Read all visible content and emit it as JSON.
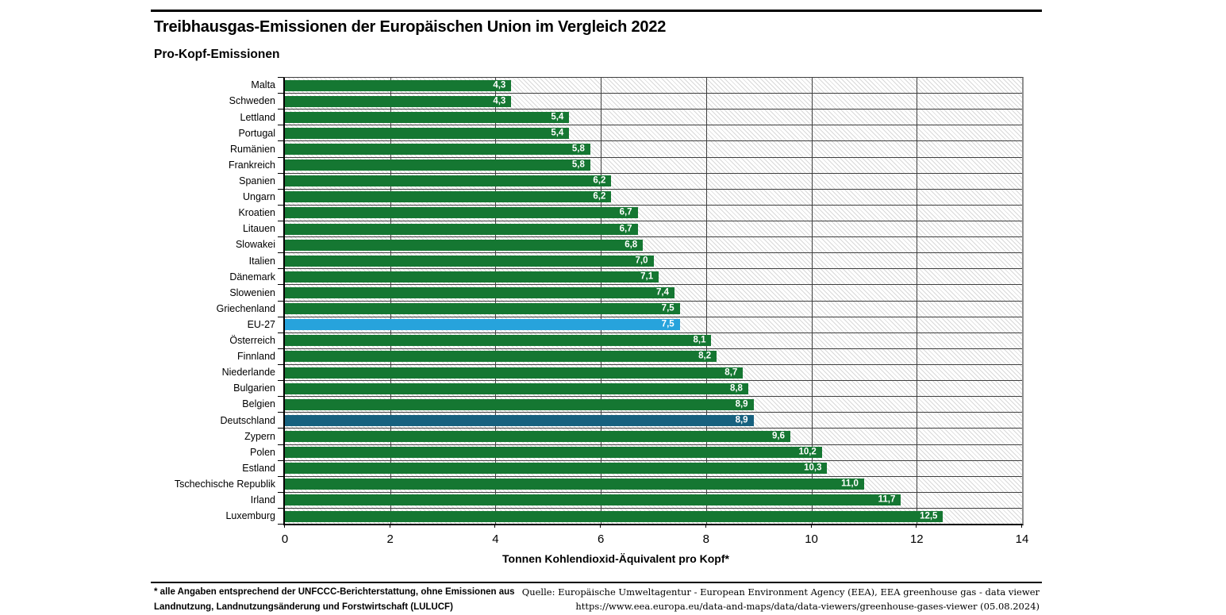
{
  "title": "Treibhausgas-Emissionen der Europäischen Union im Vergleich 2022",
  "subtitle": "Pro-Kopf-Emissionen",
  "chart_data": {
    "type": "bar",
    "orientation": "horizontal",
    "title": "Treibhausgas-Emissionen der Europäischen Union im Vergleich 2022",
    "subtitle": "Pro-Kopf-Emissionen",
    "categories": [
      "Malta",
      "Schweden",
      "Lettland",
      "Portugal",
      "Rumänien",
      "Frankreich",
      "Spanien",
      "Ungarn",
      "Kroatien",
      "Litauen",
      "Slowakei",
      "Italien",
      "Dänemark",
      "Slowenien",
      "Griechenland",
      "EU-27",
      "Österreich",
      "Finnland",
      "Niederlande",
      "Bulgarien",
      "Belgien",
      "Deutschland",
      "Zypern",
      "Polen",
      "Estland",
      "Tschechische Republik",
      "Irland",
      "Luxemburg"
    ],
    "values": [
      4.3,
      4.3,
      5.4,
      5.4,
      5.8,
      5.8,
      6.2,
      6.2,
      6.7,
      6.7,
      6.8,
      7.0,
      7.1,
      7.4,
      7.5,
      7.5,
      8.1,
      8.2,
      8.7,
      8.8,
      8.9,
      8.9,
      9.6,
      10.2,
      10.3,
      11.0,
      11.7,
      12.5
    ],
    "value_labels": [
      "4,3",
      "4,3",
      "5,4",
      "5,4",
      "5,8",
      "5,8",
      "6,2",
      "6,2",
      "6,7",
      "6,7",
      "6,8",
      "7,0",
      "7,1",
      "7,4",
      "7,5",
      "7,5",
      "8,1",
      "8,2",
      "8,7",
      "8,8",
      "8,9",
      "8,9",
      "9,6",
      "10,2",
      "10,3",
      "11,0",
      "11,7",
      "12,5"
    ],
    "xlabel": "Tonnen Kohlendioxid-Äquivalent pro Kopf*",
    "xlim": [
      0,
      14
    ],
    "xticks": [
      0,
      2,
      4,
      6,
      8,
      10,
      12,
      14
    ],
    "grid": "vertical-on",
    "legend": "none",
    "bar_color": "#157732",
    "highlight_colors": {
      "EU-27": "#27a3dc",
      "Deutschland": "#17617f"
    },
    "background_pattern": "diagonal-hatch"
  },
  "footnote": {
    "left_line1": "* alle Angaben entsprechend der UNFCCC-Berichterstattung, ohne Emissionen aus",
    "left_line2": "Landnutzung, Landnutzungsänderung und Forstwirtschaft (LULUCF)",
    "source_line1": "Quelle: Europäische Umweltagentur - European Environment Agency (EEA), EEA greenhouse gas - data viewer",
    "source_line2": "https://www.eea.europa.eu/data-and-maps/data/data-viewers/greenhouse-gases-viewer (05.08.2024)"
  }
}
